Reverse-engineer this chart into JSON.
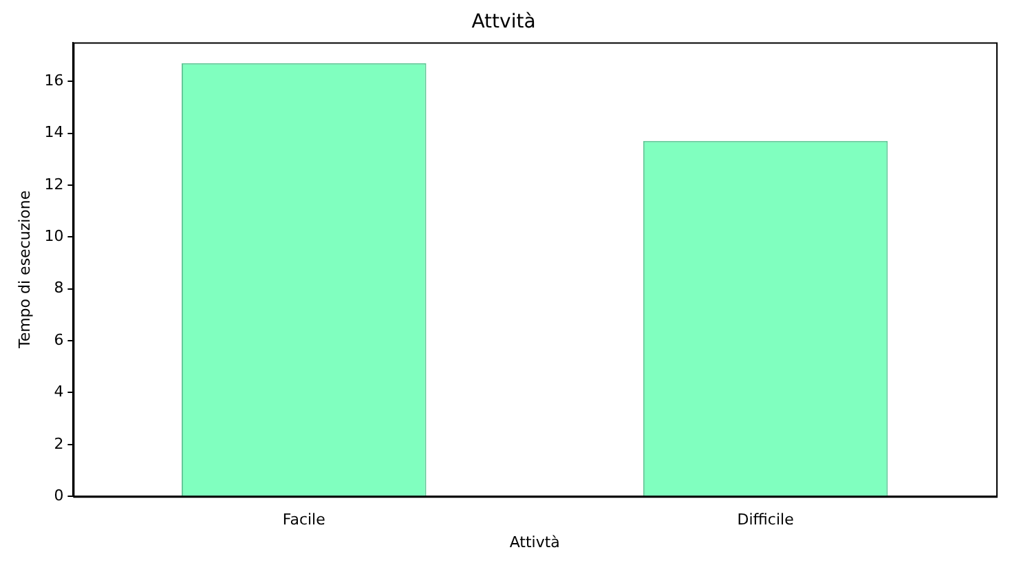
{
  "chart_data": {
    "type": "bar",
    "title": "Attvità",
    "xlabel": "Attivtà",
    "ylabel": "Tempo di esecuzione",
    "categories": [
      "Facile",
      "Difficile"
    ],
    "values": [
      16.7,
      13.7
    ],
    "color": "#80ffbf",
    "ylim": [
      0,
      17.5
    ],
    "yticks": [
      0,
      2,
      4,
      6,
      8,
      10,
      12,
      14,
      16
    ],
    "grid": false,
    "legend": false
  }
}
